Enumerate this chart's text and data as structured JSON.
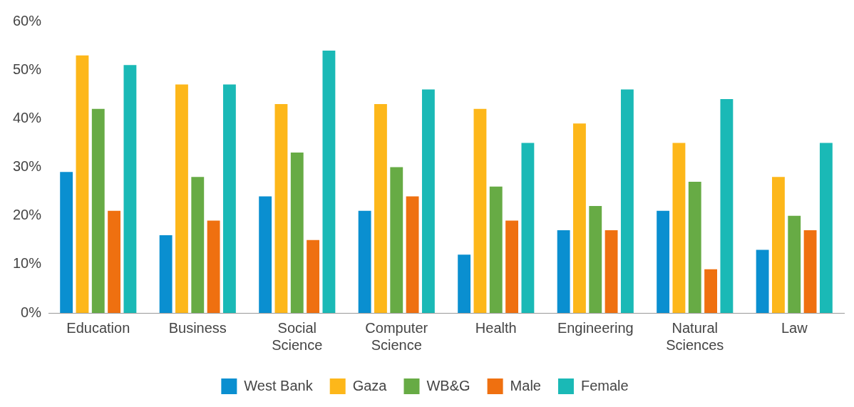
{
  "chart_data": {
    "type": "bar",
    "categories": [
      "Education",
      "Business",
      "Social Science",
      "Computer Science",
      "Health",
      "Engineering",
      "Natural Sciences",
      "Law"
    ],
    "series": [
      {
        "name": "West Bank",
        "color": "#0a8fd0",
        "values": [
          29,
          16,
          24,
          21,
          12,
          17,
          21,
          13
        ]
      },
      {
        "name": "Gaza",
        "color": "#fdb71a",
        "values": [
          53,
          47,
          43,
          43,
          42,
          39,
          35,
          28
        ]
      },
      {
        "name": "WB&G",
        "color": "#67ab45",
        "values": [
          42,
          28,
          33,
          30,
          26,
          22,
          27,
          20
        ]
      },
      {
        "name": "Male",
        "color": "#ef7010",
        "values": [
          21,
          19,
          15,
          24,
          19,
          17,
          9,
          17
        ]
      },
      {
        "name": "Female",
        "color": "#1ab9b6",
        "values": [
          51,
          47,
          54,
          46,
          35,
          46,
          44,
          35
        ]
      }
    ],
    "ylim": [
      0,
      60
    ],
    "yticks": [
      {
        "value": 0,
        "label": "0%"
      },
      {
        "value": 10,
        "label": "10%"
      },
      {
        "value": 20,
        "label": "20%"
      },
      {
        "value": 30,
        "label": "30%"
      },
      {
        "value": 40,
        "label": "40%"
      },
      {
        "value": 50,
        "label": "50%"
      },
      {
        "value": 60,
        "label": "60%"
      }
    ],
    "grid": false,
    "legend": "bottom"
  }
}
